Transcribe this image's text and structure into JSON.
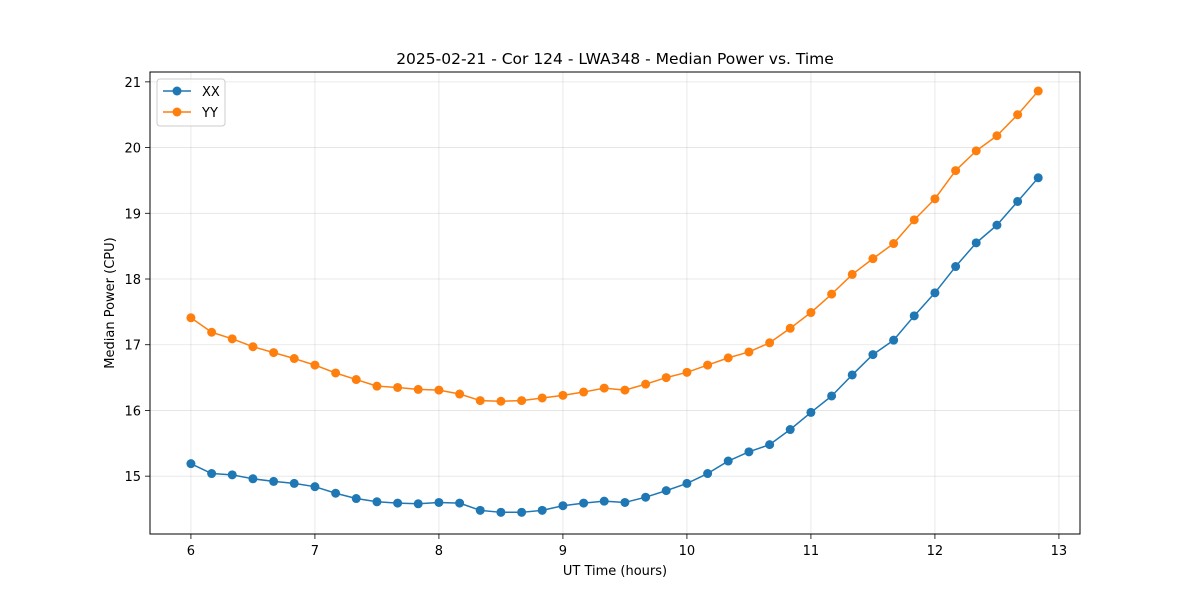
{
  "chart_data": {
    "type": "line",
    "title": "2025-02-21 - Cor 124 - LWA348 - Median Power vs. Time",
    "xlabel": "UT Time (hours)",
    "ylabel": "Median Power (CPU)",
    "xlim": [
      5.67,
      13.17
    ],
    "ylim": [
      14.12,
      21.15
    ],
    "xticks": [
      6,
      7,
      8,
      9,
      10,
      11,
      12,
      13
    ],
    "yticks": [
      15,
      16,
      17,
      18,
      19,
      20,
      21
    ],
    "grid": true,
    "legend_position": "top-left",
    "x": [
      6.0,
      6.167,
      6.333,
      6.5,
      6.667,
      6.833,
      7.0,
      7.167,
      7.333,
      7.5,
      7.667,
      7.833,
      8.0,
      8.167,
      8.333,
      8.5,
      8.667,
      8.833,
      9.0,
      9.167,
      9.333,
      9.5,
      9.667,
      9.833,
      10.0,
      10.167,
      10.333,
      10.5,
      10.667,
      10.833,
      11.0,
      11.167,
      11.333,
      11.5,
      11.667,
      11.833,
      12.0,
      12.167,
      12.333,
      12.5,
      12.667,
      12.833
    ],
    "series": [
      {
        "name": "XX",
        "color": "#1f77b4",
        "values": [
          15.19,
          15.04,
          15.02,
          14.96,
          14.92,
          14.89,
          14.84,
          14.74,
          14.66,
          14.61,
          14.59,
          14.58,
          14.6,
          14.59,
          14.48,
          14.45,
          14.45,
          14.48,
          14.55,
          14.59,
          14.62,
          14.6,
          14.68,
          14.78,
          14.89,
          15.04,
          15.23,
          15.37,
          15.48,
          15.71,
          15.97,
          16.22,
          16.54,
          16.85,
          17.07,
          17.44,
          17.79,
          18.19,
          18.55,
          18.82,
          19.18,
          19.54
        ]
      },
      {
        "name": "YY",
        "color": "#ff7f0e",
        "values": [
          17.41,
          17.19,
          17.09,
          16.97,
          16.88,
          16.79,
          16.69,
          16.57,
          16.47,
          16.37,
          16.35,
          16.32,
          16.31,
          16.25,
          16.15,
          16.14,
          16.15,
          16.19,
          16.23,
          16.28,
          16.34,
          16.31,
          16.4,
          16.5,
          16.58,
          16.69,
          16.8,
          16.89,
          17.03,
          17.25,
          17.49,
          17.77,
          18.07,
          18.31,
          18.54,
          18.9,
          19.22,
          19.65,
          19.95,
          20.18,
          20.5,
          20.86
        ]
      }
    ]
  }
}
